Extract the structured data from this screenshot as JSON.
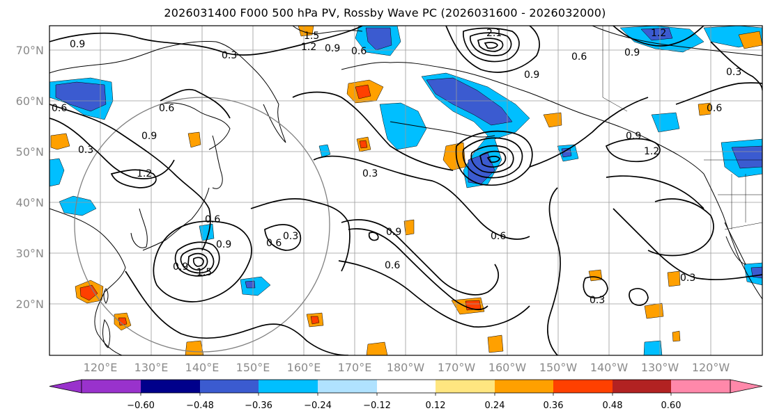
{
  "title": "2026031400 F000 500 hPa PV, Rossby Wave PC (2026031600 - 2026032000)",
  "map": {
    "lat_labels": [
      "70°N",
      "60°N",
      "50°N",
      "40°N",
      "30°N",
      "20°N"
    ],
    "lon_labels": [
      "120°E",
      "130°E",
      "140°E",
      "150°E",
      "160°E",
      "170°E",
      "180°W",
      "170°W",
      "160°W",
      "150°W",
      "140°W",
      "130°W",
      "120°W"
    ],
    "contour_labels": [
      "0.9",
      "0.3",
      "1.5",
      "1.2",
      "0.9",
      "0.6",
      "2.1",
      "0.6",
      "0.9",
      "1.2",
      "0.9",
      "0.3",
      "0.6",
      "0.6",
      "0.9",
      "0.3",
      "1.2",
      "0.6",
      "0.9",
      "0.6",
      "0.3",
      "0.3",
      "0.9",
      "0.6",
      "0.6",
      "1.5",
      "0.9",
      "0.3",
      "0.9",
      "1.2",
      "0.6",
      "0.3"
    ]
  },
  "colorbar": {
    "ticks": [
      "−0.60",
      "−0.48",
      "−0.36",
      "−0.24",
      "−0.12",
      "0.12",
      "0.24",
      "0.36",
      "0.48",
      "0.60"
    ],
    "colors": [
      "#9932cc",
      "#00008b",
      "#3b5bd0",
      "#00bfff",
      "#b0e2ff",
      "#ffffff",
      "#ffe680",
      "#ffa000",
      "#ff4000",
      "#b22222",
      "#ff88aa"
    ]
  },
  "colors": {
    "neg_strong": "#3b5bd0",
    "neg_mid": "#00bfff",
    "neg_weak": "#b0e2ff",
    "pos_weak": "#ffe680",
    "pos_mid": "#ffa000",
    "pos_strong": "#ff4000",
    "pos_darkest": "#b22222"
  }
}
